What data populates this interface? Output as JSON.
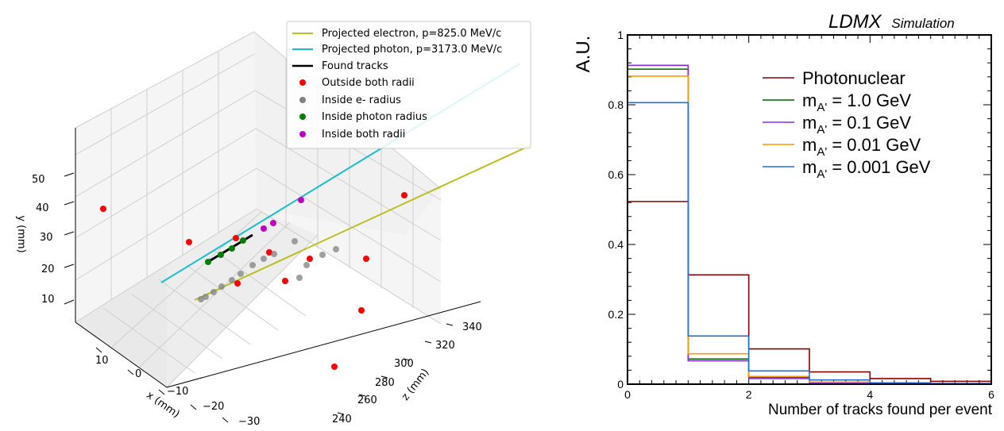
{
  "chart_data": [
    {
      "type": "scatter",
      "projection": "3d",
      "xlabel": "x (mm)",
      "ylabel": "y (mm)",
      "zlabel": "z (mm)",
      "x_ticks": [
        "10",
        "0",
        "−10",
        "−20",
        "−30"
      ],
      "y_ticks": [
        "10",
        "20",
        "30",
        "40",
        "50"
      ],
      "z_ticks": [
        "240",
        "260",
        "280",
        "300",
        "320",
        "340"
      ],
      "xlim": [
        -35,
        15
      ],
      "ylim": [
        5,
        58
      ],
      "zlim": [
        230,
        350
      ],
      "grid": true,
      "legend_position": "top-right",
      "legend": [
        {
          "label": "Projected electron, p=825.0 MeV/c",
          "kind": "line",
          "color": "#bcbd22"
        },
        {
          "label": "Projected photon, p=3173.0 MeV/c",
          "kind": "line",
          "color": "#17becf"
        },
        {
          "label": "Found tracks",
          "kind": "line",
          "color": "#000000"
        },
        {
          "label": "Outside both radii",
          "kind": "point",
          "color": "#ff0000"
        },
        {
          "label": "Inside e- radius",
          "kind": "point",
          "color": "#808080"
        },
        {
          "label": "Inside photon radius",
          "kind": "point",
          "color": "#008000"
        },
        {
          "label": "Inside both radii",
          "kind": "point",
          "color": "#c000c0"
        }
      ]
    },
    {
      "type": "histogram",
      "top_label": "LDMX",
      "top_label_suffix": "Simulation",
      "xlabel": "Number of tracks found per event",
      "ylabel": "A.U.",
      "xlim": [
        0,
        6
      ],
      "ylim": [
        0,
        1
      ],
      "x_ticks": [
        "0",
        "2",
        "4",
        "6"
      ],
      "y_ticks": [
        "0",
        "0.2",
        "0.4",
        "0.6",
        "0.8",
        "1"
      ],
      "bin_edges": [
        0,
        1,
        2,
        3,
        4,
        5,
        6
      ],
      "legend_position": "top-right",
      "series": [
        {
          "name": "Photonuclear",
          "color": "#8b0000",
          "values": [
            0.523,
            0.313,
            0.101,
            0.035,
            0.016,
            0.008
          ]
        },
        {
          "name_main": "m",
          "name_sub": "A'",
          "name_rest": " = 1.0 GeV",
          "color": "#006400",
          "values": [
            0.902,
            0.072,
            0.02,
            0.004,
            0.002,
            0.0
          ]
        },
        {
          "name_main": "m",
          "name_sub": "A'",
          "name_rest": " = 0.1 GeV",
          "color": "#8a2be2",
          "values": [
            0.913,
            0.067,
            0.016,
            0.003,
            0.001,
            0.0
          ]
        },
        {
          "name_main": "m",
          "name_sub": "A'",
          "name_rest": " = 0.01 GeV",
          "color": "#ff9900",
          "values": [
            0.882,
            0.087,
            0.022,
            0.006,
            0.002,
            0.001
          ]
        },
        {
          "name_main": "m",
          "name_sub": "A'",
          "name_rest": " = 0.001 GeV",
          "color": "#1f6fd1",
          "values": [
            0.806,
            0.138,
            0.038,
            0.012,
            0.004,
            0.002
          ]
        }
      ]
    }
  ]
}
